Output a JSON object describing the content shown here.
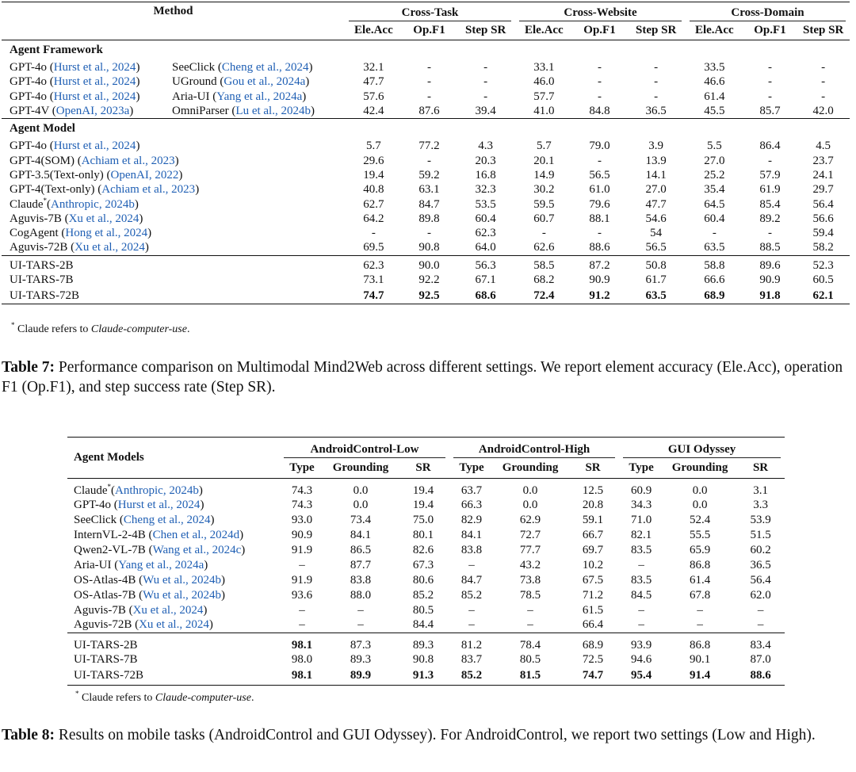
{
  "table7": {
    "header": {
      "method": "Method",
      "groups": [
        "Cross-Task",
        "Cross-Website",
        "Cross-Domain"
      ],
      "columns": [
        "Ele.Acc",
        "Op.F1",
        "Step SR"
      ]
    },
    "sections": [
      {
        "title": "Agent Framework",
        "rows": [
          {
            "method": [
              {
                "t": "GPT-4o ("
              },
              {
                "cite": "Hurst et al., 2024"
              },
              {
                "t": ")"
              }
            ],
            "tool": [
              {
                "t": "SeeClick ("
              },
              {
                "cite": "Cheng et al., 2024"
              },
              {
                "t": ")"
              }
            ],
            "cells": [
              "32.1",
              "-",
              "-",
              "33.1",
              "-",
              "-",
              "33.5",
              "-",
              "-"
            ]
          },
          {
            "method": [
              {
                "t": "GPT-4o ("
              },
              {
                "cite": "Hurst et al., 2024"
              },
              {
                "t": ")"
              }
            ],
            "tool": [
              {
                "t": "UGround ("
              },
              {
                "cite": "Gou et al., 2024a"
              },
              {
                "t": ")"
              }
            ],
            "cells": [
              "47.7",
              "-",
              "-",
              "46.0",
              "-",
              "-",
              "46.6",
              "-",
              "-"
            ]
          },
          {
            "method": [
              {
                "t": "GPT-4o ("
              },
              {
                "cite": "Hurst et al., 2024"
              },
              {
                "t": ")"
              }
            ],
            "tool": [
              {
                "t": "Aria-UI ("
              },
              {
                "cite": "Yang et al., 2024a"
              },
              {
                "t": ")"
              }
            ],
            "cells": [
              "57.6",
              "-",
              "-",
              "57.7",
              "-",
              "-",
              "61.4",
              "-",
              "-"
            ]
          },
          {
            "method": [
              {
                "t": "GPT-4V ("
              },
              {
                "cite": "OpenAI, 2023a"
              },
              {
                "t": ")"
              }
            ],
            "tool": [
              {
                "t": "OmniParser ("
              },
              {
                "cite": "Lu et al., 2024b"
              },
              {
                "t": ")"
              }
            ],
            "cells": [
              "42.4",
              "87.6",
              "39.4",
              "41.0",
              "84.8",
              "36.5",
              "45.5",
              "85.7",
              "42.0"
            ]
          }
        ]
      },
      {
        "title": "Agent Model",
        "rows": [
          {
            "method": [
              {
                "t": "GPT-4o ("
              },
              {
                "cite": "Hurst et al., 2024"
              },
              {
                "t": ")"
              }
            ],
            "cells": [
              "5.7",
              "77.2",
              "4.3",
              "5.7",
              "79.0",
              "3.9",
              "5.5",
              "86.4",
              "4.5"
            ]
          },
          {
            "method": [
              {
                "t": "GPT-4(SOM) ("
              },
              {
                "cite": "Achiam et al., 2023"
              },
              {
                "t": ")"
              }
            ],
            "cells": [
              "29.6",
              "-",
              "20.3",
              "20.1",
              "-",
              "13.9",
              "27.0",
              "-",
              "23.7"
            ]
          },
          {
            "method": [
              {
                "t": "GPT-3.5(Text-only) ("
              },
              {
                "cite": "OpenAI, 2022"
              },
              {
                "t": ")"
              }
            ],
            "cells": [
              "19.4",
              "59.2",
              "16.8",
              "14.9",
              "56.5",
              "14.1",
              "25.2",
              "57.9",
              "24.1"
            ]
          },
          {
            "method": [
              {
                "t": "GPT-4(Text-only) ("
              },
              {
                "cite": "Achiam et al., 2023"
              },
              {
                "t": ")"
              }
            ],
            "cells": [
              "40.8",
              "63.1",
              "32.3",
              "30.2",
              "61.0",
              "27.0",
              "35.4",
              "61.9",
              "29.7"
            ]
          },
          {
            "method": [
              {
                "t": "Claude"
              },
              {
                "sup": "*"
              },
              {
                "t": "("
              },
              {
                "cite": "Anthropic, 2024b"
              },
              {
                "t": ")"
              }
            ],
            "cells": [
              "62.7",
              "84.7",
              "53.5",
              "59.5",
              "79.6",
              "47.7",
              "64.5",
              "85.4",
              "56.4"
            ]
          },
          {
            "method": [
              {
                "t": "Aguvis-7B ("
              },
              {
                "cite": "Xu et al., 2024"
              },
              {
                "t": ")"
              }
            ],
            "cells": [
              "64.2",
              "89.8",
              "60.4",
              "60.7",
              "88.1",
              "54.6",
              "60.4",
              "89.2",
              "56.6"
            ]
          },
          {
            "method": [
              {
                "t": "CogAgent ("
              },
              {
                "cite": "Hong et al., 2024"
              },
              {
                "t": ")"
              }
            ],
            "cells": [
              "-",
              "-",
              "62.3",
              "-",
              "-",
              "54",
              "-",
              "-",
              "59.4"
            ]
          },
          {
            "method": [
              {
                "t": "Aguvis-72B ("
              },
              {
                "cite": "Xu et al., 2024"
              },
              {
                "t": ")"
              }
            ],
            "cells": [
              "69.5",
              "90.8",
              "64.0",
              "62.6",
              "88.6",
              "56.5",
              "63.5",
              "88.5",
              "58.2"
            ]
          }
        ]
      },
      {
        "rows": [
          {
            "method": [
              {
                "t": "UI-TARS-2B"
              }
            ],
            "cells": [
              "62.3",
              "90.0",
              "56.3",
              "58.5",
              "87.2",
              "50.8",
              "58.8",
              "89.6",
              "52.3"
            ]
          },
          {
            "method": [
              {
                "t": "UI-TARS-7B"
              }
            ],
            "cells": [
              "73.1",
              "92.2",
              "67.1",
              "68.2",
              "90.9",
              "61.7",
              "66.6",
              "90.9",
              "60.5"
            ]
          },
          {
            "method": [
              {
                "t": "UI-TARS-72B"
              }
            ],
            "cells": [
              "74.7",
              "92.5",
              "68.6",
              "72.4",
              "91.2",
              "63.5",
              "68.9",
              "91.8",
              "62.1"
            ],
            "bold": [
              0,
              1,
              2,
              3,
              4,
              5,
              6,
              7,
              8
            ]
          }
        ]
      }
    ],
    "footnote": [
      {
        "sup": "*"
      },
      {
        "t": " Claude refers to "
      },
      {
        "i": "Claude-computer-use"
      },
      {
        "t": "."
      }
    ],
    "caption": [
      {
        "b": "Table 7:"
      },
      {
        "t": " Performance comparison on Multimodal Mind2Web across different settings. We report element accuracy (Ele.Acc), operation F1 (Op.F1), and step success rate (Step SR)."
      }
    ]
  },
  "table8": {
    "header": {
      "method": "Agent Models",
      "groups": [
        "AndroidControl-Low",
        "AndroidControl-High",
        "GUI Odyssey"
      ],
      "columns": [
        "Type",
        "Grounding",
        "SR"
      ]
    },
    "sections": [
      {
        "rows": [
          {
            "method": [
              {
                "t": "Claude"
              },
              {
                "sup": "*"
              },
              {
                "t": "("
              },
              {
                "cite": "Anthropic, 2024b"
              },
              {
                "t": ")"
              }
            ],
            "cells": [
              "74.3",
              "0.0",
              "19.4",
              "63.7",
              "0.0",
              "12.5",
              "60.9",
              "0.0",
              "3.1"
            ]
          },
          {
            "method": [
              {
                "t": "GPT-4o ("
              },
              {
                "cite": "Hurst et al., 2024"
              },
              {
                "t": ")"
              }
            ],
            "cells": [
              "74.3",
              "0.0",
              "19.4",
              "66.3",
              "0.0",
              "20.8",
              "34.3",
              "0.0",
              "3.3"
            ]
          },
          {
            "method": [
              {
                "t": "SeeClick ("
              },
              {
                "cite": "Cheng et al., 2024"
              },
              {
                "t": ")"
              }
            ],
            "cells": [
              "93.0",
              "73.4",
              "75.0",
              "82.9",
              "62.9",
              "59.1",
              "71.0",
              "52.4",
              "53.9"
            ]
          },
          {
            "method": [
              {
                "t": "InternVL-2-4B ("
              },
              {
                "cite": "Chen et al., 2024d"
              },
              {
                "t": ")"
              }
            ],
            "cells": [
              "90.9",
              "84.1",
              "80.1",
              "84.1",
              "72.7",
              "66.7",
              "82.1",
              "55.5",
              "51.5"
            ]
          },
          {
            "method": [
              {
                "t": "Qwen2-VL-7B ("
              },
              {
                "cite": "Wang et al., 2024c"
              },
              {
                "t": ")"
              }
            ],
            "cells": [
              "91.9",
              "86.5",
              "82.6",
              "83.8",
              "77.7",
              "69.7",
              "83.5",
              "65.9",
              "60.2"
            ]
          },
          {
            "method": [
              {
                "t": "Aria-UI ("
              },
              {
                "cite": "Yang et al., 2024a"
              },
              {
                "t": ")"
              }
            ],
            "cells": [
              "–",
              "87.7",
              "67.3",
              "–",
              "43.2",
              "10.2",
              "–",
              "86.8",
              "36.5"
            ]
          },
          {
            "method": [
              {
                "t": "OS-Atlas-4B ("
              },
              {
                "cite": "Wu et al., 2024b"
              },
              {
                "t": ")"
              }
            ],
            "cells": [
              "91.9",
              "83.8",
              "80.6",
              "84.7",
              "73.8",
              "67.5",
              "83.5",
              "61.4",
              "56.4"
            ]
          },
          {
            "method": [
              {
                "t": "OS-Atlas-7B ("
              },
              {
                "cite": "Wu et al., 2024b"
              },
              {
                "t": ")"
              }
            ],
            "cells": [
              "93.6",
              "88.0",
              "85.2",
              "85.2",
              "78.5",
              "71.2",
              "84.5",
              "67.8",
              "62.0"
            ]
          },
          {
            "method": [
              {
                "t": "Aguvis-7B ("
              },
              {
                "cite": "Xu et al., 2024"
              },
              {
                "t": ")"
              }
            ],
            "cells": [
              "–",
              "–",
              "80.5",
              "–",
              "–",
              "61.5",
              "–",
              "–",
              "–"
            ]
          },
          {
            "method": [
              {
                "t": "Aguvis-72B ("
              },
              {
                "cite": "Xu et al., 2024"
              },
              {
                "t": ")"
              }
            ],
            "cells": [
              "–",
              "–",
              "84.4",
              "–",
              "–",
              "66.4",
              "–",
              "–",
              "–"
            ]
          }
        ]
      },
      {
        "rows": [
          {
            "method": [
              {
                "t": "UI-TARS-2B"
              }
            ],
            "cells": [
              "98.1",
              "87.3",
              "89.3",
              "81.2",
              "78.4",
              "68.9",
              "93.9",
              "86.8",
              "83.4"
            ],
            "bold": [
              0
            ]
          },
          {
            "method": [
              {
                "t": "UI-TARS-7B"
              }
            ],
            "cells": [
              "98.0",
              "89.3",
              "90.8",
              "83.7",
              "80.5",
              "72.5",
              "94.6",
              "90.1",
              "87.0"
            ]
          },
          {
            "method": [
              {
                "t": "UI-TARS-72B"
              }
            ],
            "cells": [
              "98.1",
              "89.9",
              "91.3",
              "85.2",
              "81.5",
              "74.7",
              "95.4",
              "91.4",
              "88.6"
            ],
            "bold": [
              0,
              1,
              2,
              3,
              4,
              5,
              6,
              7,
              8
            ]
          }
        ]
      }
    ],
    "footnote": [
      {
        "sup": "*"
      },
      {
        "t": " Claude refers to "
      },
      {
        "i": "Claude-computer-use"
      },
      {
        "t": "."
      }
    ],
    "caption": [
      {
        "b": "Table 8:"
      },
      {
        "t": " Results on mobile tasks (AndroidControl and GUI Odyssey). For AndroidControl, we report two settings (Low and High)."
      }
    ]
  }
}
